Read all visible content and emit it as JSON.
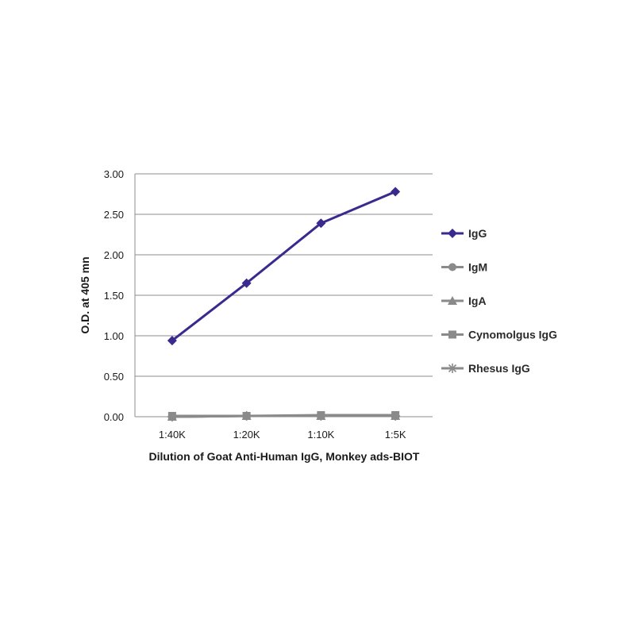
{
  "chart_data": {
    "type": "line",
    "categories": [
      "1:40K",
      "1:20K",
      "1:10K",
      "1:5K"
    ],
    "xlabel": "Dilution of Goat Anti-Human IgG, Monkey ads-BIOT",
    "ylabel": "O.D. at 405 mn",
    "ylim": [
      0,
      3
    ],
    "yticks": [
      "0.00",
      "0.50",
      "1.00",
      "1.50",
      "2.00",
      "2.50",
      "3.00"
    ],
    "grid": "horizontal",
    "legend_position": "right",
    "series": [
      {
        "name": "IgG",
        "values": [
          0.94,
          1.65,
          2.39,
          2.78
        ],
        "color": "#3a2a8e",
        "marker": "diamond"
      },
      {
        "name": "IgM",
        "values": [
          0.0,
          0.01,
          0.01,
          0.01
        ],
        "color": "#8a8a8a",
        "marker": "circle"
      },
      {
        "name": "IgA",
        "values": [
          0.0,
          0.01,
          0.01,
          0.01
        ],
        "color": "#8a8a8a",
        "marker": "triangle"
      },
      {
        "name": "Cynomolgus IgG",
        "values": [
          0.01,
          0.01,
          0.02,
          0.02
        ],
        "color": "#8a8a8a",
        "marker": "square"
      },
      {
        "name": "Rhesus IgG",
        "values": [
          0.0,
          0.01,
          0.01,
          0.01
        ],
        "color": "#8a8a8a",
        "marker": "star"
      }
    ]
  }
}
